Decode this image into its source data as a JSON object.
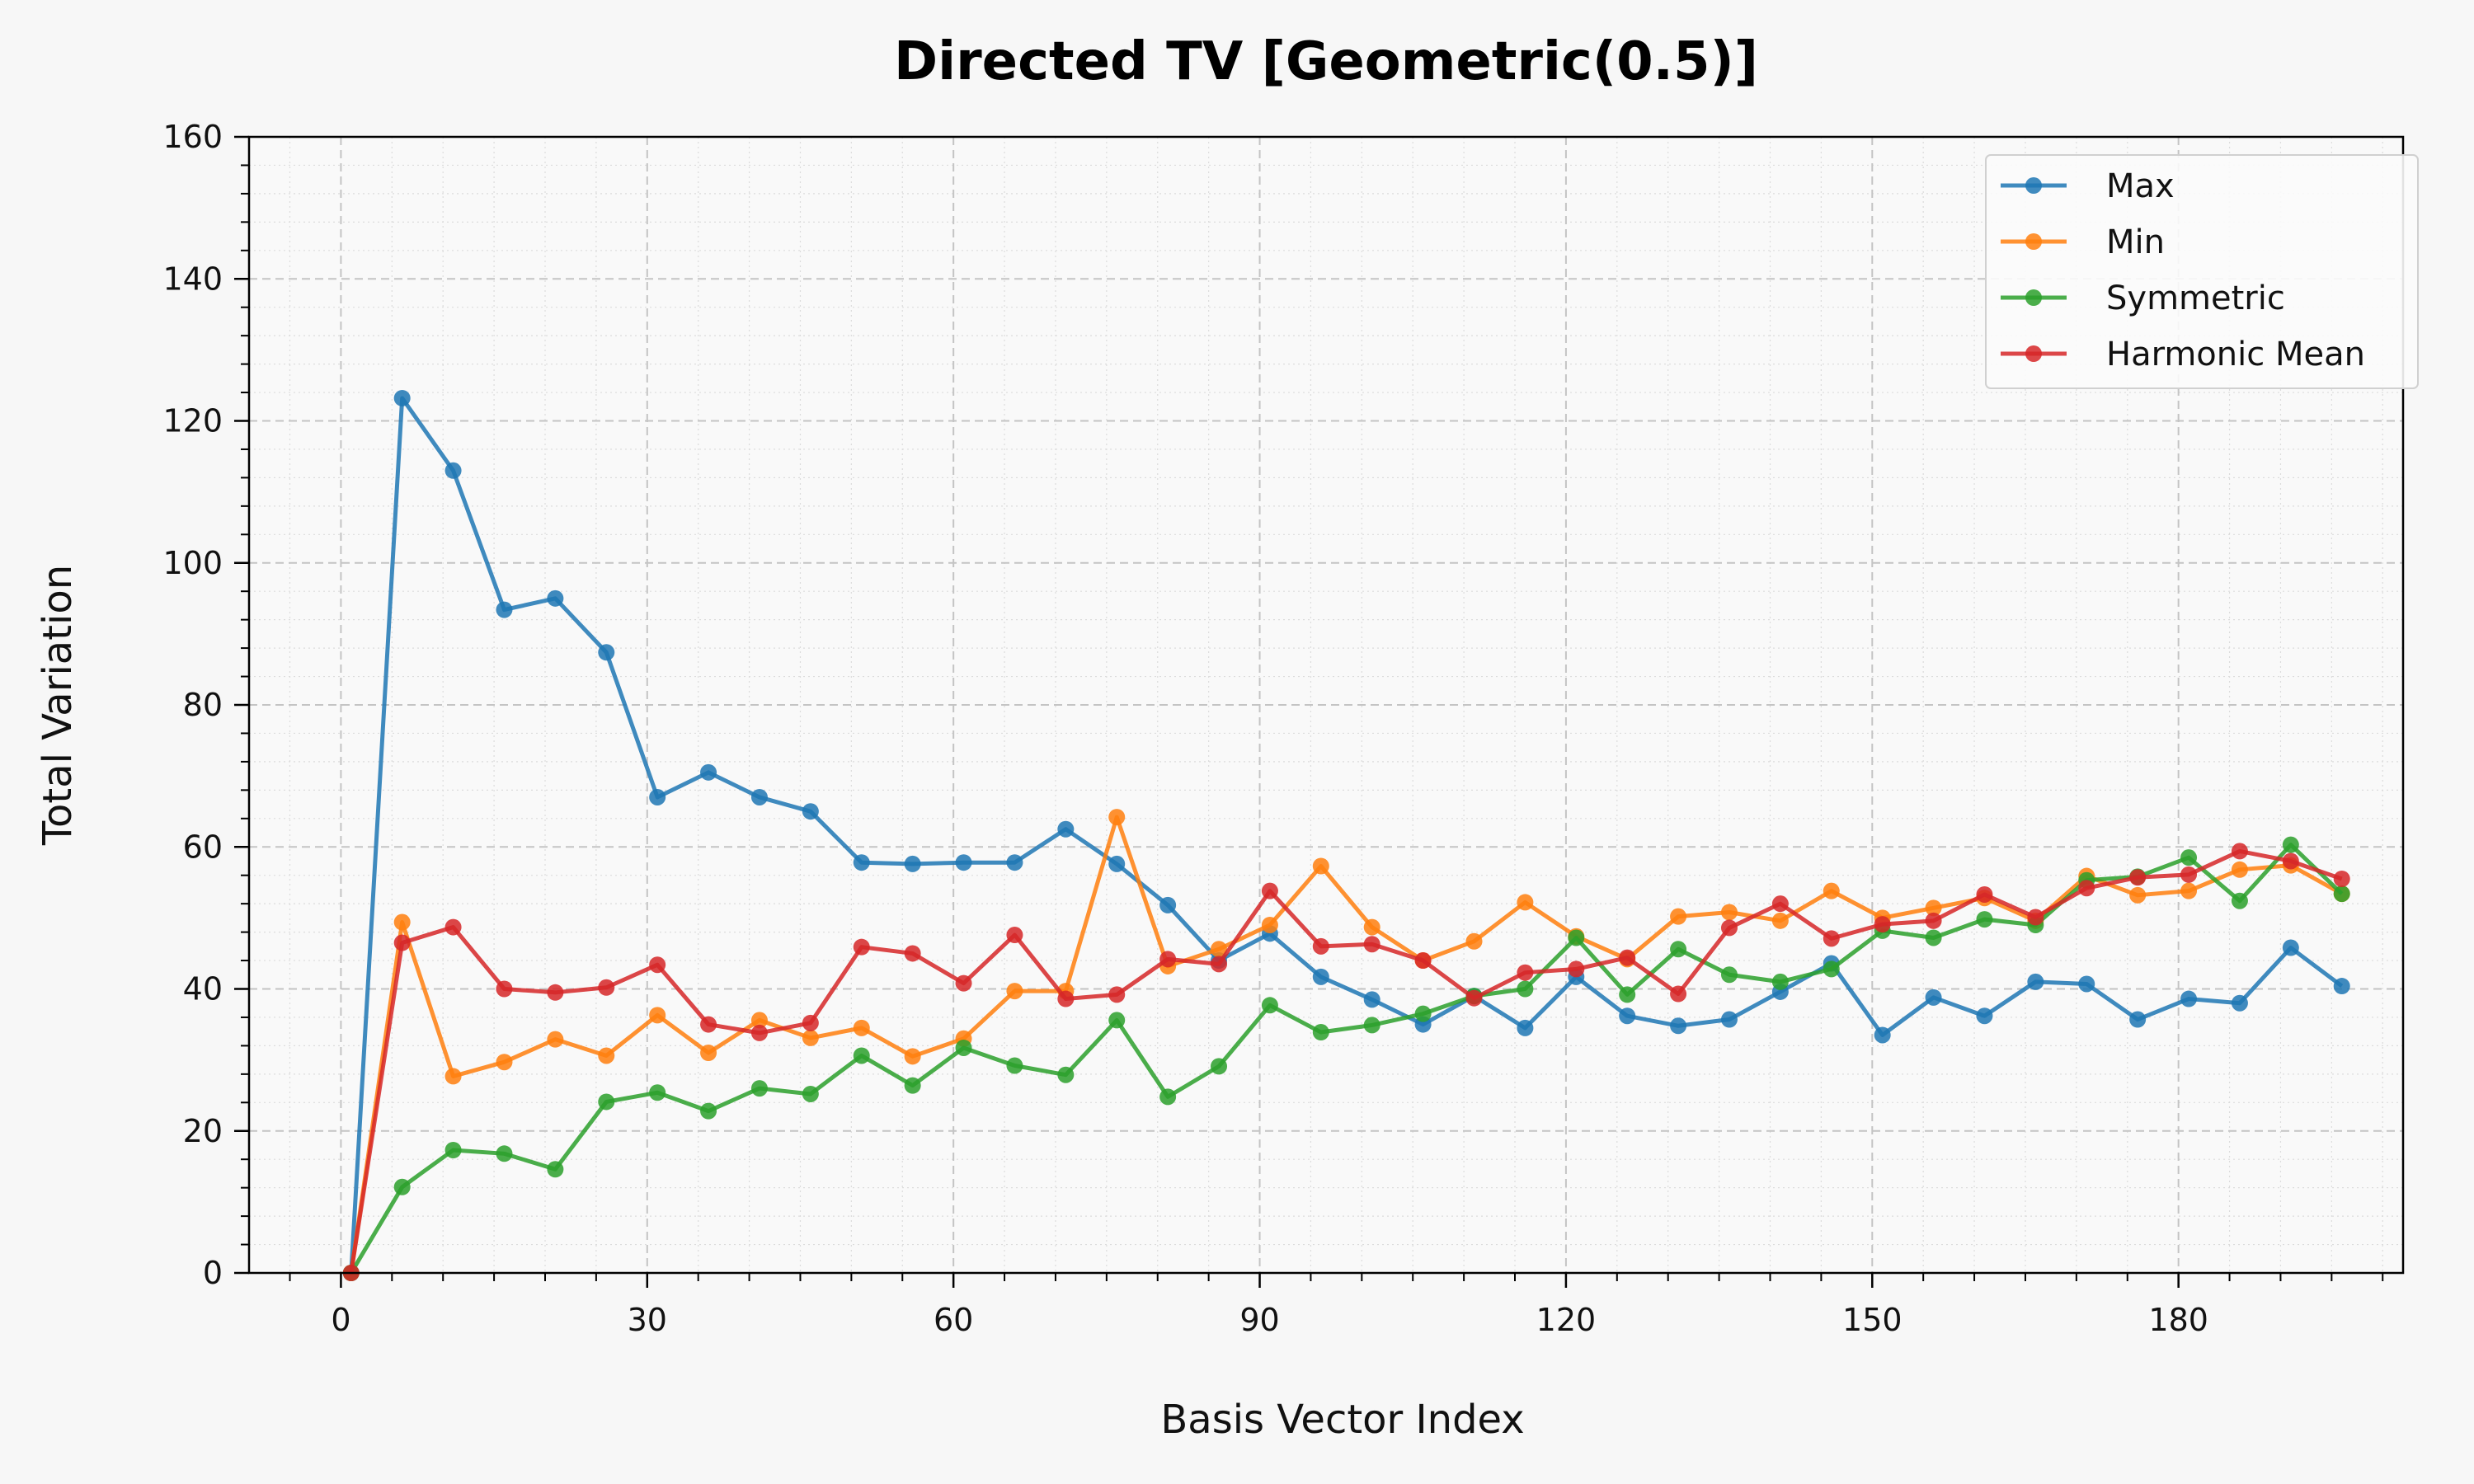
{
  "chart_data": {
    "type": "line",
    "title": "Directed TV [Geometric(0.5)]",
    "xlabel": "Basis Vector Index",
    "ylabel": "Total Variation",
    "xlim": [
      -9,
      202
    ],
    "ylim": [
      0,
      160
    ],
    "xticks": [
      0,
      30,
      60,
      90,
      120,
      150,
      180
    ],
    "yticks": [
      0,
      20,
      40,
      60,
      80,
      100,
      120,
      140,
      160
    ],
    "grid": true,
    "legend_position": "top-right",
    "x": [
      1,
      6,
      11,
      16,
      21,
      26,
      31,
      36,
      41,
      46,
      51,
      56,
      61,
      66,
      71,
      76,
      81,
      86,
      91,
      96,
      101,
      106,
      111,
      116,
      121,
      126,
      131,
      136,
      141,
      146,
      151,
      156,
      161,
      166,
      171,
      176,
      181,
      186,
      191,
      196
    ],
    "series": [
      {
        "name": "Max",
        "color": "#1f77b4",
        "values": [
          0,
          123.2,
          113.0,
          93.4,
          95.0,
          87.4,
          67.0,
          70.5,
          67.0,
          65.0,
          57.8,
          57.6,
          57.8,
          57.8,
          62.5,
          57.6,
          51.8,
          44.0,
          47.8,
          41.7,
          38.5,
          35.0,
          39.0,
          34.5,
          41.7,
          36.2,
          34.8,
          35.7,
          39.6,
          43.6,
          33.5,
          38.8,
          36.2,
          41.0,
          40.7,
          35.7,
          38.6,
          38.0,
          45.8,
          40.4
        ]
      },
      {
        "name": "Min",
        "color": "#ff7f0e",
        "values": [
          0,
          49.4,
          27.7,
          29.7,
          32.9,
          30.6,
          36.3,
          31.0,
          35.6,
          33.1,
          34.5,
          30.5,
          33.0,
          39.7,
          39.7,
          64.2,
          43.2,
          45.6,
          49.0,
          57.3,
          48.7,
          44.0,
          46.7,
          52.2,
          47.4,
          44.2,
          50.2,
          50.8,
          49.6,
          53.8,
          50.0,
          51.4,
          52.8,
          49.6,
          55.9,
          53.2,
          53.8,
          56.8,
          57.4,
          53.4
        ]
      },
      {
        "name": "Symmetric",
        "color": "#2ca02c",
        "values": [
          0,
          12.1,
          17.3,
          16.8,
          14.6,
          24.1,
          25.4,
          22.8,
          26.0,
          25.2,
          30.6,
          26.4,
          31.7,
          29.2,
          27.9,
          35.6,
          24.8,
          29.1,
          37.7,
          33.9,
          34.9,
          36.5,
          39.0,
          40.0,
          47.2,
          39.2,
          45.6,
          42.0,
          41.0,
          42.8,
          48.2,
          47.2,
          49.8,
          49.0,
          55.3,
          55.8,
          58.5,
          52.4,
          60.3,
          53.4
        ]
      },
      {
        "name": "Harmonic Mean",
        "color": "#d62728",
        "values": [
          0,
          46.5,
          48.7,
          40.0,
          39.5,
          40.2,
          43.4,
          35.0,
          33.8,
          35.2,
          45.9,
          45.0,
          40.8,
          47.6,
          38.6,
          39.2,
          44.2,
          43.5,
          53.8,
          46.0,
          46.3,
          44.0,
          38.7,
          42.3,
          42.8,
          44.4,
          39.3,
          48.6,
          52.0,
          47.1,
          49.1,
          49.6,
          53.3,
          50.1,
          54.2,
          55.7,
          56.1,
          59.4,
          58.0,
          55.5
        ]
      }
    ]
  }
}
